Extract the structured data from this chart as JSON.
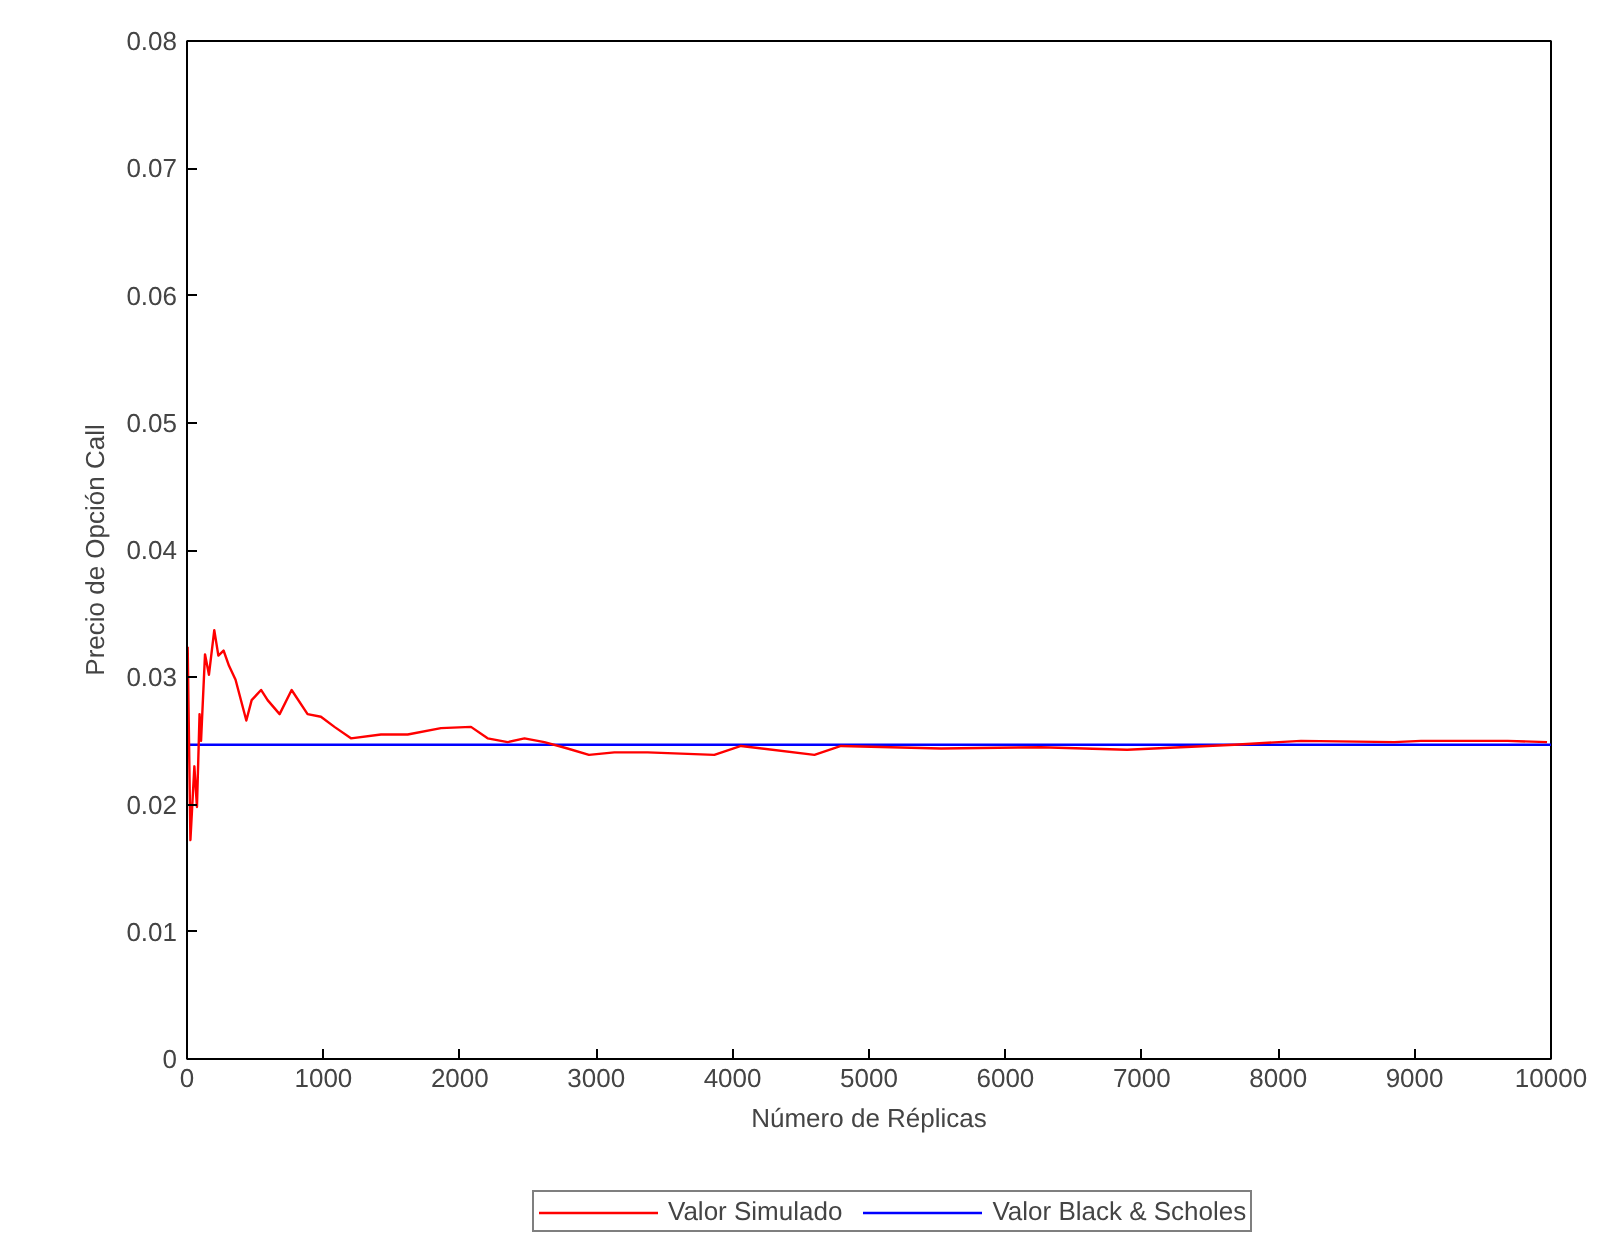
{
  "chart_data": {
    "type": "line",
    "xlabel": "Número de Réplicas",
    "ylabel": "Precio de Opción Call",
    "xlim": [
      0,
      10000
    ],
    "xticks": [
      0,
      1000,
      2000,
      3000,
      4000,
      5000,
      6000,
      7000,
      8000,
      9000,
      10000
    ],
    "ylim": [
      0,
      0.08
    ],
    "yticks": [
      0,
      0.01,
      0.02,
      0.03,
      0.04,
      0.05,
      0.06,
      0.07,
      0.08
    ],
    "grid": false,
    "legend": "bottom",
    "series": [
      {
        "name": "Valor Simulado",
        "color": "#ff0000",
        "x": [
          5,
          25,
          54,
          73,
          92,
          103,
          132,
          161,
          200,
          230,
          268,
          308,
          356,
          435,
          474,
          543,
          591,
          679,
          767,
          884,
          982,
          1081,
          1202,
          1422,
          1618,
          1862,
          2082,
          2204,
          2351,
          2474,
          2620,
          2790,
          2947,
          3133,
          3377,
          3866,
          4062,
          4600,
          4795,
          5528,
          6261,
          6892,
          7679,
          8167,
          8851,
          9047,
          9682,
          9971
        ],
        "values": [
          0.0324,
          0.0172,
          0.023,
          0.0198,
          0.0271,
          0.025,
          0.0318,
          0.0302,
          0.0337,
          0.0317,
          0.0321,
          0.0309,
          0.0298,
          0.0266,
          0.0282,
          0.029,
          0.0282,
          0.0271,
          0.029,
          0.0271,
          0.0269,
          0.0261,
          0.0252,
          0.0255,
          0.0255,
          0.026,
          0.0261,
          0.0252,
          0.0249,
          0.0252,
          0.0249,
          0.0244,
          0.0239,
          0.0241,
          0.0241,
          0.0239,
          0.0246,
          0.0239,
          0.0246,
          0.0244,
          0.0245,
          0.0243,
          0.0247,
          0.025,
          0.0249,
          0.025,
          0.025,
          0.0249
        ]
      },
      {
        "name": "Valor Black & Scholes",
        "color": "#0000ff",
        "x": [
          0,
          10000
        ],
        "values": [
          0.0247,
          0.0247
        ]
      }
    ]
  }
}
